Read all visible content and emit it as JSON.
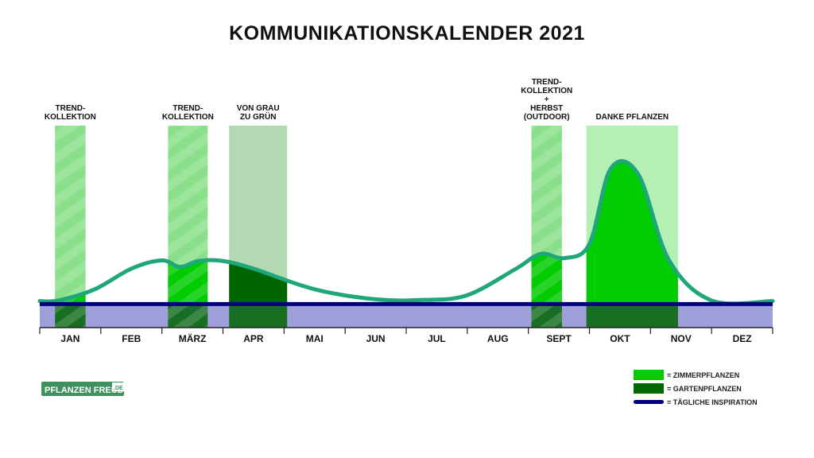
{
  "title": "KOMMUNIKATIONSKALENDER 2021",
  "logo": {
    "main": "PFLANZEN FREUDE",
    "suffix": ".DE"
  },
  "colors": {
    "zimmer": "#00cc00",
    "zimmer_light": "#b4f0b4",
    "garten": "#006600",
    "garten_light": "#b3d9b3",
    "trend_light": "#8ae08a",
    "inspiration": "#000080",
    "base_band": "#9f9fd9",
    "curve": "#1fa67a",
    "logo_bg": "#3f8f5f"
  },
  "chart_data": {
    "type": "area",
    "title": "KOMMUNIKATIONSKALENDER 2021",
    "categories": [
      "JAN",
      "FEB",
      "MÄRZ",
      "APR",
      "MAI",
      "JUN",
      "JUL",
      "AUG",
      "SEPT",
      "OKT",
      "NOV",
      "DEZ"
    ],
    "grid": false,
    "legend_position": "bottom-right",
    "legend": [
      {
        "label": "= ZIMMERPFLANZEN",
        "symbol": "zimmer"
      },
      {
        "label": "= GARTENPFLANZEN",
        "symbol": "garten"
      },
      {
        "label": "= TÄGLICHE INSPIRATION",
        "symbol": "inspiration"
      }
    ],
    "curve": {
      "x": [
        0.0,
        0.3,
        0.9,
        1.5,
        2.0,
        2.3,
        2.6,
        3.0,
        3.5,
        4.5,
        5.5,
        6.3,
        7.0,
        7.8,
        8.2,
        8.6,
        9.0,
        9.35,
        9.8,
        10.3,
        11.0,
        12.0
      ],
      "y": [
        0.5,
        0.6,
        2.5,
        6.0,
        7.4,
        6.3,
        7.3,
        7.3,
        6.0,
        2.5,
        0.8,
        0.7,
        1.5,
        6.0,
        8.5,
        7.8,
        10.2,
        23.0,
        22.0,
        7.5,
        0.6,
        0.5
      ],
      "ylim": [
        -4,
        30
      ]
    },
    "inspiration_level": 0,
    "bands": [
      {
        "label": [
          "TREND-",
          "KOLLEKTION"
        ],
        "start": 0.25,
        "end": 0.75,
        "kind": "trend"
      },
      {
        "label": [
          "TREND-",
          "KOLLEKTION"
        ],
        "start": 2.1,
        "end": 2.75,
        "kind": "trend"
      },
      {
        "label": [
          "VON GRAU",
          "ZU GRÜN"
        ],
        "start": 3.1,
        "end": 4.05,
        "kind": "garten"
      },
      {
        "label": [
          "TREND-",
          "KOLLEKTION",
          "+",
          "HERBST",
          "(OUTDOOR)"
        ],
        "start": 8.05,
        "end": 8.55,
        "kind": "trend"
      },
      {
        "label": [
          "DANKE PFLANZEN"
        ],
        "start": 8.95,
        "end": 10.45,
        "kind": "zimmer"
      }
    ]
  }
}
